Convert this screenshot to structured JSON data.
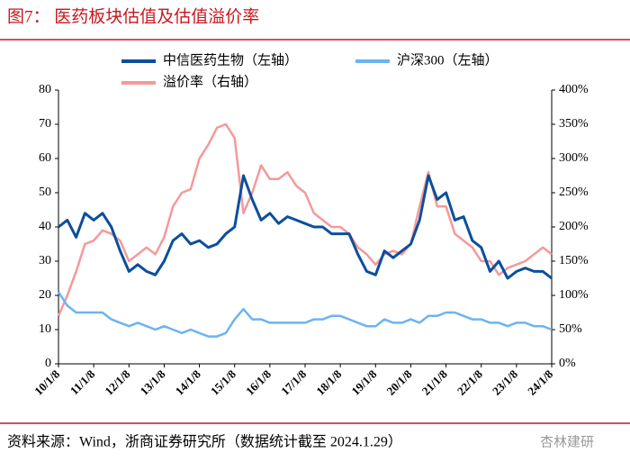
{
  "chart_data": {
    "type": "line",
    "title": "图7：  医药板块估值及估值溢价率",
    "source": "资料来源：Wind，浙商证券研究所（数据统计截至 2024.1.29）",
    "watermark": "杏林建研",
    "x": [
      "10/1/8",
      "10/4/8",
      "10/7/8",
      "10/10/8",
      "11/1/8",
      "11/4/8",
      "11/7/8",
      "11/10/8",
      "12/1/8",
      "12/4/8",
      "12/7/8",
      "12/10/8",
      "13/1/8",
      "13/4/8",
      "13/7/8",
      "13/10/8",
      "14/1/8",
      "14/4/8",
      "14/7/8",
      "14/10/8",
      "15/1/8",
      "15/4/8",
      "15/7/8",
      "15/10/8",
      "16/1/8",
      "16/4/8",
      "16/7/8",
      "16/10/8",
      "17/1/8",
      "17/4/8",
      "17/7/8",
      "17/10/8",
      "18/1/8",
      "18/4/8",
      "18/7/8",
      "18/10/8",
      "19/1/8",
      "19/4/8",
      "19/7/8",
      "19/10/8",
      "20/1/8",
      "20/4/8",
      "20/7/8",
      "20/10/8",
      "21/1/8",
      "21/4/8",
      "21/7/8",
      "21/10/8",
      "22/1/8",
      "22/4/8",
      "22/7/8",
      "22/10/8",
      "23/1/8",
      "23/4/8",
      "23/7/8",
      "23/10/8",
      "24/1/8"
    ],
    "xticks": [
      "10/1/8",
      "11/1/8",
      "12/1/8",
      "13/1/8",
      "14/1/8",
      "15/1/8",
      "16/1/8",
      "17/1/8",
      "18/1/8",
      "19/1/8",
      "20/1/8",
      "21/1/8",
      "22/1/8",
      "23/1/8",
      "24/1/8"
    ],
    "ylim": [
      0,
      80
    ],
    "yticks": [
      0,
      10,
      20,
      30,
      40,
      50,
      60,
      70,
      80
    ],
    "y2lim": [
      0,
      400
    ],
    "y2ticks": [
      {
        "value": 0,
        "label": "0%"
      },
      {
        "value": 50,
        "label": "50%"
      },
      {
        "value": 100,
        "label": "100%"
      },
      {
        "value": 150,
        "label": "150%"
      },
      {
        "value": 200,
        "label": "200%"
      },
      {
        "value": 250,
        "label": "250%"
      },
      {
        "value": 300,
        "label": "300%"
      },
      {
        "value": 350,
        "label": "350%"
      },
      {
        "value": 400,
        "label": "400%"
      }
    ],
    "series": [
      {
        "name": "中信医药生物（左轴）",
        "color": "#0b4f9c",
        "axis": "y",
        "values": [
          40,
          42,
          37,
          44,
          42,
          44,
          40,
          33,
          27,
          29,
          27,
          26,
          30,
          36,
          38,
          35,
          36,
          34,
          35,
          38,
          40,
          55,
          48,
          42,
          44,
          41,
          43,
          42,
          41,
          40,
          40,
          38,
          38,
          38,
          32,
          27,
          26,
          33,
          31,
          33,
          35,
          42,
          55,
          48,
          50,
          42,
          43,
          36,
          34,
          27,
          30,
          25,
          27,
          28,
          27,
          27,
          25
        ]
      },
      {
        "name": "沪深300（左轴）",
        "color": "#6cb4f0",
        "axis": "y",
        "values": [
          21,
          17,
          15,
          15,
          15,
          15,
          13,
          12,
          11,
          12,
          11,
          10,
          11,
          10,
          9,
          10,
          9,
          8,
          8,
          9,
          13,
          16,
          13,
          13,
          12,
          12,
          12,
          12,
          12,
          13,
          13,
          14,
          14,
          13,
          12,
          11,
          11,
          13,
          12,
          12,
          13,
          12,
          14,
          14,
          15,
          15,
          14,
          13,
          13,
          12,
          12,
          11,
          12,
          12,
          11,
          11,
          10
        ]
      },
      {
        "name": "溢价率（右轴）",
        "color": "#f4999a",
        "axis": "y2",
        "values": [
          70,
          100,
          135,
          175,
          180,
          195,
          190,
          180,
          150,
          160,
          170,
          160,
          185,
          230,
          250,
          255,
          300,
          320,
          345,
          350,
          330,
          220,
          250,
          290,
          270,
          270,
          280,
          260,
          250,
          220,
          210,
          200,
          200,
          190,
          170,
          160,
          145,
          160,
          165,
          160,
          175,
          230,
          280,
          230,
          230,
          190,
          180,
          170,
          150,
          150,
          130,
          140,
          145,
          150,
          160,
          170,
          160
        ]
      }
    ]
  }
}
